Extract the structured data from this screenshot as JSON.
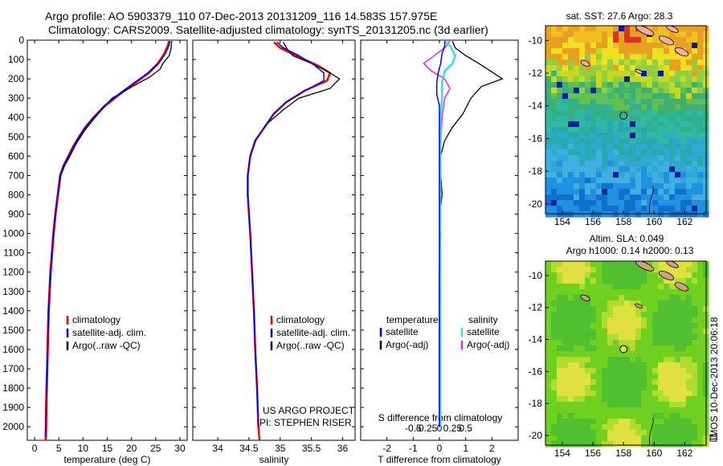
{
  "title_line1": "Argo profile: AO 5903379_110 07-Dec-2013 20131209_116 14.583S 157.975E",
  "title_line2": "Climatology: CARS2009. Satellite-adjusted climatology: synTS_20131205.nc (3d earlier)",
  "depth_ticks": [
    0,
    100,
    200,
    300,
    400,
    500,
    600,
    700,
    800,
    900,
    1000,
    1100,
    1200,
    1300,
    1400,
    1500,
    1600,
    1700,
    1800,
    1900,
    2000
  ],
  "panels": {
    "temperature": {
      "xlabel": "temperature (deg C)",
      "xlim": [
        -1.5,
        31.5
      ],
      "xticks": [
        0,
        5,
        10,
        15,
        20,
        25,
        30
      ],
      "ylim": [
        0,
        2070
      ],
      "legend": [
        "climatology",
        "satellite-adj. clim.",
        "Argo(..raw -QC)"
      ]
    },
    "salinity": {
      "xlabel": "salinity",
      "xlim": [
        33.6,
        36.2
      ],
      "xticks": [
        34,
        34.5,
        35,
        35.5,
        36
      ],
      "xtick_labels": [
        "34",
        "34.5",
        "35",
        "35.5",
        "36"
      ],
      "ylim": [
        0,
        2070
      ],
      "legend": [
        "climatology",
        "satellite-adj. clim.",
        "Argo(..raw -QC)"
      ],
      "annotation1": "US ARGO PROJECT",
      "annotation2": "PI: STEPHEN RISER"
    },
    "difference": {
      "xlabel": "T difference from climatology",
      "top_axis_label": "S difference from climatology",
      "xlim": [
        -3,
        3
      ],
      "xticks": [
        -2,
        -1,
        0,
        1,
        2
      ],
      "s_ticks": [
        -0.5,
        -0.25,
        0,
        0.25,
        0.5
      ],
      "s_tick_labels": [
        "-0.5",
        "-0.25",
        "0",
        "0.25",
        "0.5"
      ],
      "ylim": [
        0,
        2070
      ],
      "legend_temp_header": "temperature",
      "legend_sal_header": "salinity",
      "legend_temp": [
        "satellite",
        "Argo(-adj)"
      ],
      "legend_sal": [
        "satellite",
        "Argo(-adj)"
      ]
    }
  },
  "maps": {
    "sst": {
      "title": "sat. SST: 27.6 Argo: 28.3",
      "xticks": [
        154,
        156,
        158,
        160,
        162
      ],
      "yticks": [
        -10,
        -12,
        -14,
        -16,
        -18,
        -20
      ],
      "xlim": [
        152.9,
        163.4
      ],
      "ylim": [
        -20.6,
        -9.1
      ],
      "float_marker": [
        158,
        -14.6
      ]
    },
    "sla": {
      "title_line1": "Altim. SLA: 0.049",
      "title_line2": "Argo h1000: 0.14 h2000: 0.13",
      "xticks": [
        154,
        156,
        158,
        160,
        162
      ],
      "yticks": [
        -10,
        -12,
        -14,
        -16,
        -18,
        -20
      ],
      "xlim": [
        152.9,
        163.4
      ],
      "ylim": [
        -20.6,
        -9.1
      ],
      "float_marker": [
        158,
        -14.6
      ]
    }
  },
  "side_label": "IMOS 10-Dec-2013 20:06:18",
  "colors": {
    "climatology": "#ff0000",
    "satellite": "#0000ff",
    "argo": "#000000",
    "sal_sat": "#33e0e0",
    "sal_argo": "#ee22ee"
  },
  "chart_data": [
    {
      "type": "line",
      "xlabel": "temperature (deg C)",
      "series": [
        {
          "name": "climatology",
          "points": [
            [
              27.8,
              5
            ],
            [
              27.5,
              30
            ],
            [
              26.8,
              70
            ],
            [
              25.5,
              120
            ],
            [
              23.5,
              170
            ],
            [
              20.8,
              220
            ],
            [
              17.5,
              280
            ],
            [
              14.5,
              340
            ],
            [
              12.2,
              400
            ],
            [
              10.5,
              450
            ],
            [
              9.2,
              500
            ],
            [
              8.0,
              550
            ],
            [
              7.0,
              600
            ],
            [
              6.0,
              650
            ],
            [
              5.3,
              700
            ],
            [
              4.8,
              800
            ],
            [
              4.3,
              900
            ],
            [
              3.9,
              1000
            ],
            [
              3.6,
              1100
            ],
            [
              3.3,
              1200
            ],
            [
              3.1,
              1300
            ],
            [
              2.9,
              1400
            ],
            [
              2.8,
              1500
            ],
            [
              2.7,
              1600
            ],
            [
              2.6,
              1700
            ],
            [
              2.5,
              1800
            ],
            [
              2.4,
              1900
            ],
            [
              2.35,
              2000
            ],
            [
              2.3,
              2070
            ]
          ]
        },
        {
          "name": "satellite-adj. clim.",
          "points": [
            [
              28.0,
              5
            ],
            [
              27.7,
              30
            ],
            [
              27.0,
              70
            ],
            [
              25.6,
              120
            ],
            [
              23.4,
              170
            ],
            [
              20.6,
              220
            ],
            [
              17.3,
              280
            ],
            [
              14.4,
              340
            ],
            [
              12.2,
              400
            ],
            [
              10.5,
              450
            ],
            [
              9.2,
              500
            ],
            [
              8.0,
              550
            ],
            [
              7.0,
              600
            ],
            [
              6.0,
              650
            ],
            [
              5.3,
              700
            ],
            [
              4.8,
              800
            ],
            [
              4.3,
              900
            ],
            [
              3.9,
              1000
            ],
            [
              3.6,
              1100
            ],
            [
              3.3,
              1200
            ],
            [
              3.1,
              1300
            ],
            [
              2.9,
              1400
            ],
            [
              2.8,
              1500
            ],
            [
              2.7,
              1600
            ],
            [
              2.6,
              1700
            ],
            [
              2.5,
              1800
            ],
            [
              2.4,
              1900
            ],
            [
              2.35,
              2000
            ],
            [
              2.3,
              2050
            ]
          ]
        },
        {
          "name": "Argo(..raw -QC)",
          "points": [
            [
              28.3,
              5
            ],
            [
              28.2,
              40
            ],
            [
              27.8,
              80
            ],
            [
              26.5,
              120
            ],
            [
              25.9,
              150
            ],
            [
              23.8,
              190
            ],
            [
              20.2,
              240
            ],
            [
              16.0,
              300
            ],
            [
              13.8,
              360
            ],
            [
              11.5,
              430
            ],
            [
              10.0,
              480
            ],
            [
              8.5,
              540
            ],
            [
              7.3,
              600
            ],
            [
              6.2,
              650
            ],
            [
              5.4,
              700
            ],
            [
              4.8,
              800
            ],
            [
              4.3,
              900
            ],
            [
              3.9,
              1000
            ],
            [
              3.6,
              1100
            ],
            [
              3.3,
              1200
            ],
            [
              3.1,
              1300
            ],
            [
              2.9,
              1400
            ],
            [
              2.8,
              1500
            ],
            [
              2.7,
              1600
            ],
            [
              2.6,
              1700
            ],
            [
              2.5,
              1800
            ],
            [
              2.4,
              1900
            ],
            [
              2.35,
              2000
            ]
          ]
        }
      ]
    },
    {
      "type": "line",
      "xlabel": "salinity",
      "series": [
        {
          "name": "climatology",
          "points": [
            [
              34.9,
              10
            ],
            [
              35.0,
              40
            ],
            [
              35.25,
              80
            ],
            [
              35.6,
              130
            ],
            [
              35.8,
              170
            ],
            [
              35.75,
              210
            ],
            [
              35.4,
              260
            ],
            [
              35.1,
              320
            ],
            [
              34.9,
              380
            ],
            [
              34.75,
              450
            ],
            [
              34.6,
              520
            ],
            [
              34.52,
              600
            ],
            [
              34.48,
              700
            ],
            [
              34.48,
              800
            ],
            [
              34.5,
              900
            ],
            [
              34.52,
              1000
            ],
            [
              34.55,
              1200
            ],
            [
              34.58,
              1400
            ],
            [
              34.6,
              1600
            ],
            [
              34.63,
              1800
            ],
            [
              34.65,
              2000
            ],
            [
              34.67,
              2070
            ]
          ]
        },
        {
          "name": "satellite-adj. clim.",
          "points": [
            [
              34.95,
              10
            ],
            [
              35.05,
              40
            ],
            [
              35.3,
              80
            ],
            [
              35.55,
              130
            ],
            [
              35.7,
              170
            ],
            [
              35.7,
              210
            ],
            [
              35.4,
              260
            ],
            [
              35.1,
              320
            ],
            [
              34.9,
              380
            ],
            [
              34.75,
              450
            ],
            [
              34.6,
              520
            ],
            [
              34.52,
              600
            ],
            [
              34.48,
              700
            ],
            [
              34.48,
              800
            ],
            [
              34.5,
              900
            ],
            [
              34.52,
              1000
            ],
            [
              34.55,
              1200
            ],
            [
              34.58,
              1400
            ],
            [
              34.6,
              1600
            ],
            [
              34.63,
              1800
            ],
            [
              34.65,
              2000
            ]
          ]
        },
        {
          "name": "Argo(..raw -QC)",
          "points": [
            [
              35.05,
              10
            ],
            [
              35.1,
              40
            ],
            [
              35.2,
              80
            ],
            [
              35.5,
              120
            ],
            [
              35.75,
              160
            ],
            [
              35.95,
              200
            ],
            [
              35.8,
              250
            ],
            [
              35.3,
              300
            ],
            [
              35.05,
              360
            ],
            [
              34.8,
              430
            ],
            [
              34.62,
              510
            ],
            [
              34.52,
              600
            ],
            [
              34.48,
              700
            ],
            [
              34.48,
              800
            ],
            [
              34.5,
              900
            ],
            [
              34.52,
              1000
            ],
            [
              34.55,
              1200
            ],
            [
              34.58,
              1400
            ],
            [
              34.6,
              1600
            ],
            [
              34.63,
              1800
            ],
            [
              34.65,
              2000
            ]
          ]
        }
      ]
    },
    {
      "type": "line",
      "xlabel": "T difference from climatology",
      "series": [
        {
          "name": "temperature satellite",
          "points": [
            [
              0.2,
              5
            ],
            [
              0.2,
              30
            ],
            [
              0.1,
              70
            ],
            [
              0.05,
              120
            ],
            [
              -0.05,
              170
            ],
            [
              -0.1,
              220
            ],
            [
              -0.1,
              280
            ],
            [
              0,
              340
            ],
            [
              0,
              400
            ],
            [
              0,
              500
            ],
            [
              0,
              600
            ],
            [
              0,
              700
            ],
            [
              0,
              900
            ],
            [
              0,
              1200
            ],
            [
              0,
              1600
            ],
            [
              0,
              2000
            ]
          ]
        },
        {
          "name": "temperature Argo(-adj)",
          "points": [
            [
              0.5,
              5
            ],
            [
              0.6,
              40
            ],
            [
              1.0,
              80
            ],
            [
              1.5,
              120
            ],
            [
              2.4,
              200
            ],
            [
              1.6,
              240
            ],
            [
              1.2,
              300
            ],
            [
              0.9,
              380
            ],
            [
              0.5,
              450
            ],
            [
              0.2,
              520
            ],
            [
              0.05,
              600
            ],
            [
              0.05,
              700
            ],
            [
              0.1,
              800
            ],
            [
              0,
              900
            ],
            [
              0.05,
              1000
            ],
            [
              0,
              1200
            ],
            [
              0,
              1600
            ],
            [
              0,
              2000
            ]
          ]
        },
        {
          "name": "salinity satellite",
          "points": [
            [
              0.1,
              5
            ],
            [
              0.2,
              30
            ],
            [
              0.3,
              80
            ],
            [
              0.25,
              120
            ],
            [
              0.1,
              160
            ],
            [
              0.05,
              220
            ],
            [
              0.05,
              300
            ],
            [
              0.02,
              400
            ],
            [
              0.02,
              600
            ],
            [
              0.01,
              800
            ],
            [
              0.01,
              1200
            ],
            [
              0.01,
              1600
            ],
            [
              0.01,
              2000
            ]
          ]
        },
        {
          "name": "salinity Argo(-adj)",
          "points": [
            [
              0.2,
              5
            ],
            [
              0.1,
              40
            ],
            [
              -0.1,
              80
            ],
            [
              -0.3,
              120
            ],
            [
              -0.15,
              160
            ],
            [
              0.1,
              200
            ],
            [
              0.2,
              250
            ],
            [
              0.1,
              300
            ],
            [
              0.05,
              400
            ],
            [
              0.03,
              500
            ],
            [
              0.02,
              600
            ],
            [
              0.01,
              800
            ],
            [
              0.01,
              1200
            ],
            [
              0.01,
              2000
            ]
          ]
        }
      ]
    }
  ]
}
